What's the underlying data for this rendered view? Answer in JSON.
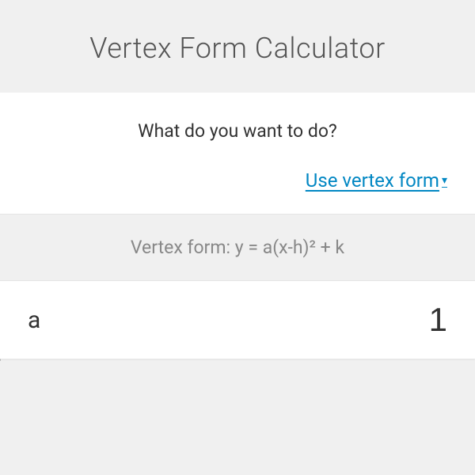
{
  "header": {
    "title": "Vertex Form Calculator"
  },
  "question": {
    "text": "What do you want to do?"
  },
  "dropdown": {
    "label": "Use vertex form",
    "icon": "▾"
  },
  "formula": {
    "text": "Vertex form: y = a(x-h)² + k"
  },
  "inputs": {
    "a": {
      "label": "a",
      "value": "1"
    }
  },
  "colors": {
    "background": "#f0f0f0",
    "card": "#ffffff",
    "title_text": "#555555",
    "body_text": "#333333",
    "muted_text": "#888888",
    "link": "#0287c3",
    "divider": "#e5e5e5"
  }
}
